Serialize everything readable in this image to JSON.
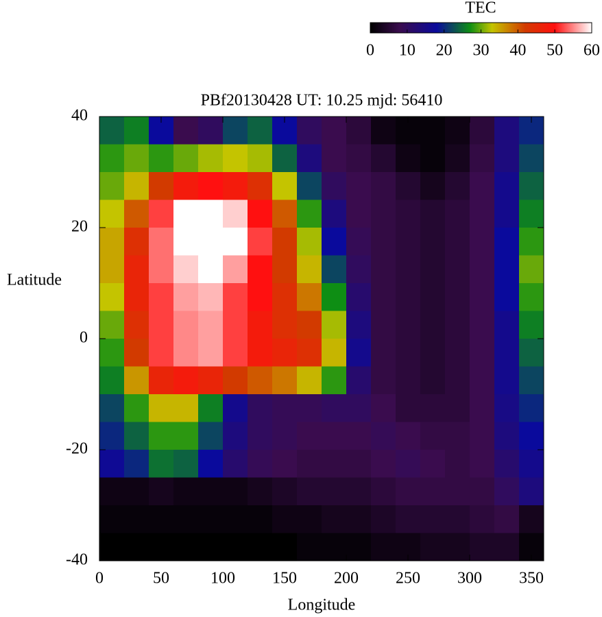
{
  "chart_data": {
    "type": "heatmap",
    "title": "PBf20130428  UT: 10.25  mjd: 56410",
    "xlabel": "Longitude",
    "ylabel": "Latitude",
    "colorbar_label": "TEC",
    "xlim": [
      0,
      360
    ],
    "ylim": [
      -40,
      40
    ],
    "xticks": [
      0,
      50,
      100,
      150,
      200,
      250,
      300,
      350
    ],
    "yticks": [
      -40,
      -20,
      0,
      20,
      40
    ],
    "zlim": [
      0,
      60
    ],
    "zticks": [
      0,
      10,
      20,
      30,
      40,
      50,
      60
    ],
    "colormap": [
      {
        "value": 0,
        "color": "#000000"
      },
      {
        "value": 8,
        "color": "#3a0c4e"
      },
      {
        "value": 18,
        "color": "#0a0a9c"
      },
      {
        "value": 27,
        "color": "#0e8e14"
      },
      {
        "value": 33,
        "color": "#c4c400"
      },
      {
        "value": 42,
        "color": "#d23a00"
      },
      {
        "value": 50,
        "color": "#ff1010"
      },
      {
        "value": 60,
        "color": "#ffffff"
      }
    ],
    "x": [
      10,
      30,
      50,
      70,
      90,
      110,
      130,
      150,
      170,
      190,
      210,
      230,
      250,
      270,
      290,
      310,
      330,
      350
    ],
    "y": [
      37.5,
      32.5,
      27.5,
      22.5,
      17.5,
      12.5,
      7.5,
      2.5,
      -2.5,
      -7.5,
      -12.5,
      -17.5,
      -22.5,
      -27.5,
      -32.5,
      -37.5
    ],
    "z": [
      [
        24,
        26,
        18,
        8,
        10,
        22,
        24,
        18,
        10,
        8,
        6,
        2,
        1,
        1,
        2,
        6,
        14,
        20
      ],
      [
        28,
        30,
        28,
        30,
        32,
        33,
        32,
        24,
        14,
        8,
        7,
        5,
        2,
        1,
        3,
        7,
        14,
        22
      ],
      [
        30,
        34,
        42,
        48,
        50,
        48,
        44,
        33,
        22,
        10,
        8,
        7,
        5,
        3,
        5,
        8,
        16,
        24
      ],
      [
        33,
        40,
        52,
        60,
        60,
        58,
        50,
        40,
        28,
        14,
        8,
        7,
        6,
        5,
        6,
        8,
        16,
        26
      ],
      [
        35,
        44,
        54,
        60,
        60,
        60,
        52,
        42,
        32,
        18,
        9,
        7,
        6,
        5,
        6,
        8,
        18,
        28
      ],
      [
        35,
        46,
        54,
        58,
        60,
        56,
        50,
        42,
        34,
        22,
        10,
        7,
        6,
        5,
        6,
        8,
        18,
        30
      ],
      [
        33,
        46,
        52,
        56,
        57,
        52,
        50,
        44,
        38,
        27,
        12,
        7,
        6,
        5,
        6,
        8,
        18,
        28
      ],
      [
        30,
        44,
        52,
        55,
        56,
        52,
        48,
        44,
        42,
        32,
        14,
        7,
        6,
        5,
        6,
        8,
        16,
        26
      ],
      [
        28,
        42,
        52,
        55,
        56,
        52,
        48,
        46,
        44,
        34,
        16,
        7,
        6,
        5,
        6,
        8,
        16,
        24
      ],
      [
        26,
        36,
        46,
        48,
        46,
        42,
        40,
        38,
        34,
        28,
        12,
        7,
        6,
        5,
        6,
        8,
        16,
        22
      ],
      [
        22,
        28,
        34,
        34,
        26,
        16,
        10,
        9,
        9,
        10,
        10,
        8,
        6,
        6,
        6,
        8,
        15,
        20
      ],
      [
        20,
        24,
        28,
        28,
        22,
        14,
        10,
        9,
        8,
        8,
        8,
        9,
        8,
        7,
        7,
        8,
        14,
        18
      ],
      [
        17,
        20,
        25,
        24,
        18,
        12,
        9,
        8,
        7,
        7,
        7,
        8,
        9,
        8,
        7,
        8,
        12,
        16
      ],
      [
        2,
        2,
        3,
        2,
        2,
        2,
        3,
        4,
        5,
        5,
        5,
        6,
        7,
        7,
        7,
        7,
        10,
        14
      ],
      [
        1,
        1,
        1,
        1,
        1,
        1,
        1,
        2,
        2,
        3,
        3,
        4,
        5,
        5,
        5,
        6,
        7,
        3
      ],
      [
        0,
        0,
        0,
        0,
        0,
        0,
        0,
        0,
        1,
        1,
        1,
        2,
        2,
        3,
        3,
        4,
        4,
        1
      ]
    ]
  }
}
